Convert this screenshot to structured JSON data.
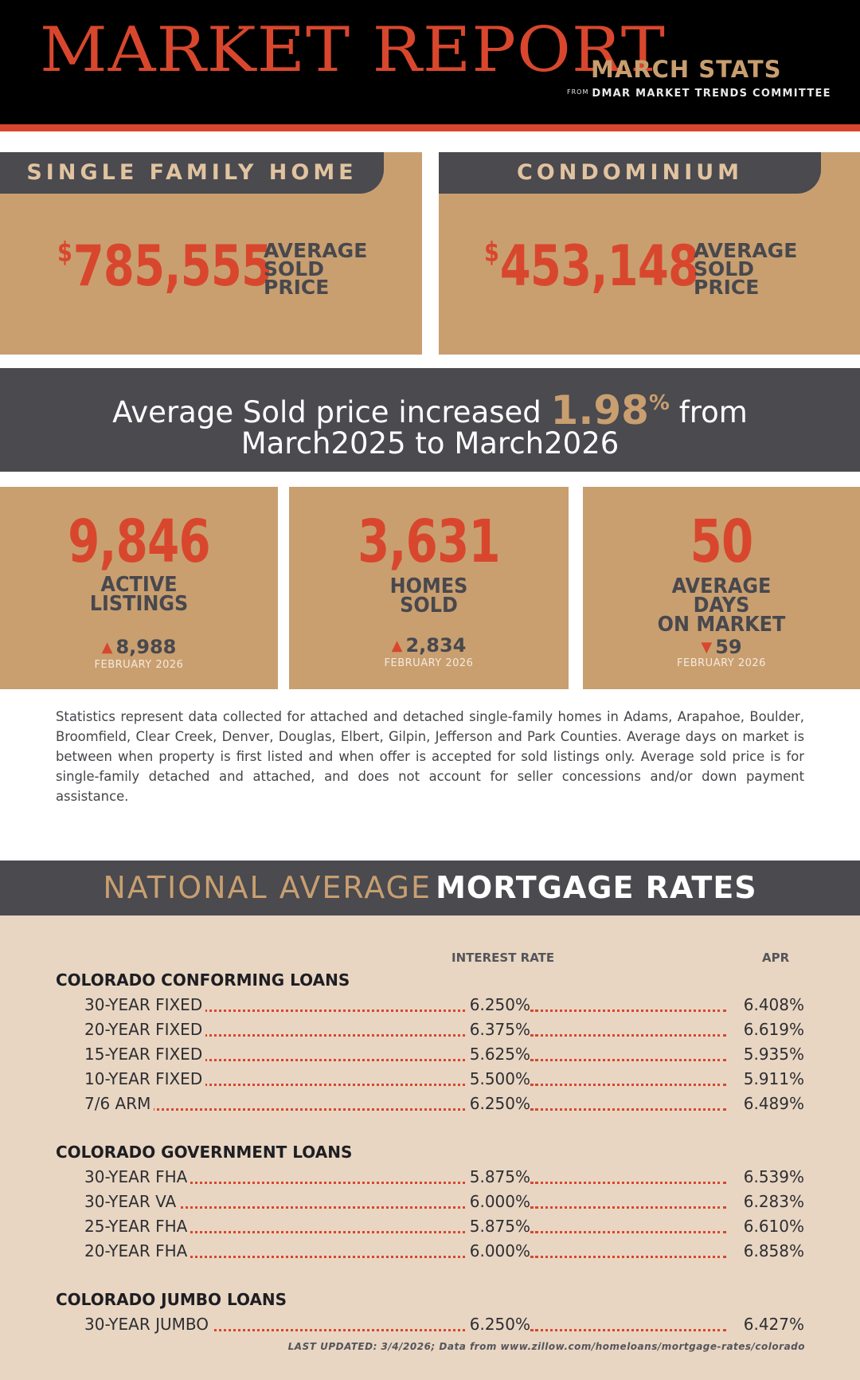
{
  "header": {
    "title": "MARKET REPORT",
    "subtitle": "MARCH STATS",
    "source_prefix": "FROM",
    "source": "DMAR MARKET TRENDS COMMITTEE"
  },
  "prices": {
    "single_family": {
      "heading": "SINGLE FAMILY HOME",
      "currency": "$",
      "value": "785,555",
      "label_lines": [
        "AVERAGE",
        "SOLD",
        "PRICE"
      ]
    },
    "condo": {
      "heading": "CONDOMINIUM",
      "currency": "$",
      "value": "453,148",
      "label_lines": [
        "AVERAGE",
        "SOLD",
        "PRICE"
      ]
    }
  },
  "banner": {
    "text_before": "Average Sold price increased ",
    "percent": "1.98",
    "percent_sign": "%",
    "text_after": " from",
    "line2": "March2025 to March2026"
  },
  "stats": {
    "active": {
      "value": "9,846",
      "label_lines": [
        "ACTIVE",
        "LISTINGS"
      ],
      "trend_icon": "▲",
      "prev": "8,988",
      "prev_period": "FEBRUARY 2026"
    },
    "sold": {
      "value": "3,631",
      "label_lines": [
        "HOMES",
        "SOLD"
      ],
      "trend_icon": "▲",
      "prev": "2,834",
      "prev_period": "FEBRUARY 2026"
    },
    "dom": {
      "value": "50",
      "label_lines": [
        "AVERAGE",
        "DAYS",
        "ON MARKET"
      ],
      "trend_icon": "▼",
      "prev": "59",
      "prev_period": "FEBRUARY 2026"
    }
  },
  "disclaimer": "Statistics represent data collected for attached and detached single-family homes in Adams, Arapahoe, Boulder, Broomfield, Clear Creek, Denver, Douglas, Elbert, Gilpin, Jefferson and Park Counties. Average days on market is between when property is first listed and when offer is accepted for sold listings only. Average sold price is for single-family detached and attached, and does not account for seller concessions and/or down payment assistance.",
  "mortgage": {
    "heading_thin": "NATIONAL AVERAGE",
    "heading_bold": "MORTGAGE RATES",
    "col_rate": "INTEREST RATE",
    "col_apr": "APR",
    "groups": [
      {
        "title": "COLORADO CONFORMING LOANS",
        "rows": [
          {
            "name": "30-YEAR FIXED",
            "rate": "6.250%",
            "apr": "6.408%"
          },
          {
            "name": "20-YEAR FIXED",
            "rate": "6.375%",
            "apr": "6.619%"
          },
          {
            "name": "15-YEAR FIXED",
            "rate": "5.625%",
            "apr": "5.935%"
          },
          {
            "name": "10-YEAR FIXED",
            "rate": "5.500%",
            "apr": "5.911%"
          },
          {
            "name": "7/6 ARM",
            "rate": "6.250%",
            "apr": "6.489%"
          }
        ]
      },
      {
        "title": "COLORADO GOVERNMENT LOANS",
        "rows": [
          {
            "name": "30-YEAR FHA",
            "rate": "5.875%",
            "apr": "6.539%"
          },
          {
            "name": "30-YEAR VA",
            "rate": "6.000%",
            "apr": "6.283%"
          },
          {
            "name": "25-YEAR FHA",
            "rate": "5.875%",
            "apr": "6.610%"
          },
          {
            "name": "20-YEAR FHA",
            "rate": "6.000%",
            "apr": "6.858%"
          }
        ]
      },
      {
        "title": "COLORADO JUMBO LOANS",
        "rows": [
          {
            "name": "30-YEAR JUMBO",
            "rate": "6.250%",
            "apr": "6.427%"
          }
        ]
      }
    ],
    "updated": "LAST UPDATED: 3/4/2026; Data from www.zillow.com/homeloans/mortgage-rates/colorado"
  },
  "colors": {
    "accent_red": "#d8472d",
    "tan": "#c99f70",
    "charcoal": "#4a4a4f",
    "cream": "#e8d6c3"
  }
}
